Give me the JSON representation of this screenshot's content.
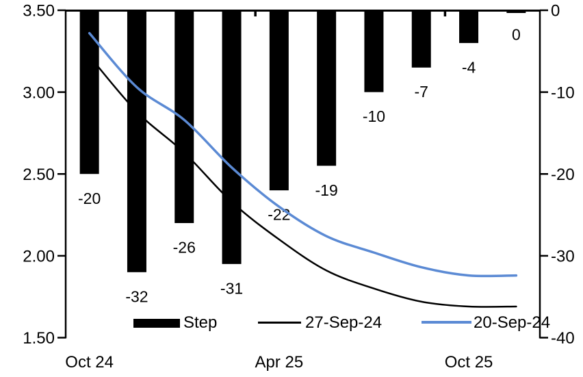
{
  "chart_data": {
    "type": "combo_bar_line",
    "title": "",
    "n_categories": 10,
    "grid": "none",
    "legend_position": "bottom-inside",
    "x_axis": {
      "tick_labels": [
        {
          "index": 0,
          "label": "Oct 24"
        },
        {
          "index": 4,
          "label": "Apr 25"
        },
        {
          "index": 8,
          "label": "Oct 25"
        }
      ],
      "boundary_tick_indices": [
        4,
        8
      ]
    },
    "left_axis": {
      "min": 1.5,
      "max": 3.5,
      "tick_labels": [
        "3.50",
        "3.00",
        "2.50",
        "2.00",
        "1.50"
      ],
      "tick_values": [
        3.5,
        3.0,
        2.5,
        2.0,
        1.5
      ]
    },
    "right_axis": {
      "min": -40,
      "max": 0,
      "tick_labels": [
        "0",
        "-10",
        "-20",
        "-30",
        "-40"
      ],
      "tick_values": [
        0,
        -10,
        -20,
        -30,
        -40
      ]
    },
    "bar_series": {
      "name": "Step",
      "axis": "right",
      "color": "#000000",
      "values": [
        -20,
        -32,
        -26,
        -31,
        -22,
        -19,
        -10,
        -7,
        -4,
        0
      ],
      "data_labels": [
        "-20",
        "-32",
        "-26",
        "-31",
        "-22",
        "-19",
        "-10",
        "-7",
        "-4",
        "0"
      ]
    },
    "line_series": [
      {
        "name": "27-Sep-24",
        "axis": "left",
        "color": "#000000",
        "values": [
          3.22,
          2.88,
          2.63,
          2.33,
          2.1,
          1.91,
          1.8,
          1.72,
          1.69,
          1.69
        ]
      },
      {
        "name": "20-Sep-24",
        "axis": "left",
        "color": "#5B8AD4",
        "values": [
          3.36,
          3.03,
          2.83,
          2.54,
          2.3,
          2.12,
          2.02,
          1.93,
          1.88,
          1.88
        ]
      }
    ],
    "legend": [
      {
        "label": "Step",
        "swatch": "bar",
        "color": "#000000"
      },
      {
        "label": "27-Sep-24",
        "swatch": "line",
        "color": "#000000"
      },
      {
        "label": "20-Sep-24",
        "swatch": "line",
        "color": "#5B8AD4"
      }
    ]
  }
}
